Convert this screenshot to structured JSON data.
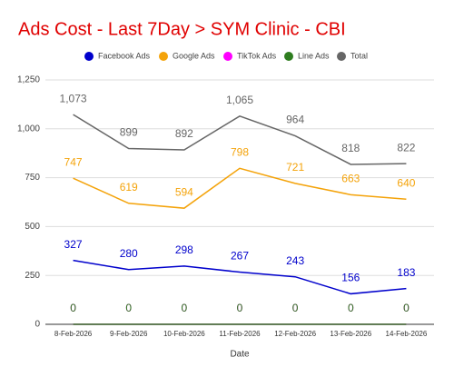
{
  "chart_data": {
    "type": "line",
    "title": "Ads Cost - Last 7Day > SYM Clinic - CBI",
    "x_label": "Date",
    "categories": [
      "8-Feb-2026",
      "9-Feb-2026",
      "10-Feb-2026",
      "11-Feb-2026",
      "12-Feb-2026",
      "13-Feb-2026",
      "14-Feb-2026"
    ],
    "series": [
      {
        "name": "Facebook Ads",
        "color": "#0000cc",
        "values": [
          327,
          280,
          298,
          267,
          243,
          156,
          183
        ]
      },
      {
        "name": "Google Ads",
        "color": "#f4a30a",
        "values": [
          747,
          619,
          594,
          798,
          721,
          663,
          640
        ]
      },
      {
        "name": "TikTok Ads",
        "color": "#ff00ff",
        "values": [
          0,
          0,
          0,
          0,
          0,
          0,
          0
        ]
      },
      {
        "name": "Line Ads",
        "color": "#2e7d1f",
        "values": [
          0,
          0,
          0,
          0,
          0,
          0,
          0
        ]
      },
      {
        "name": "Total",
        "color": "#666666",
        "values": [
          1073,
          899,
          892,
          1065,
          964,
          818,
          822
        ],
        "value_labels": [
          "1,073",
          "899",
          "892",
          "1,065",
          "964",
          "818",
          "822"
        ]
      }
    ],
    "ylim": [
      0,
      1250
    ],
    "yticks": [
      0,
      250,
      500,
      750,
      {
        "value": 1000,
        "label": "1,000"
      },
      {
        "value": 1250,
        "label": "1,250"
      }
    ],
    "grid": true
  }
}
